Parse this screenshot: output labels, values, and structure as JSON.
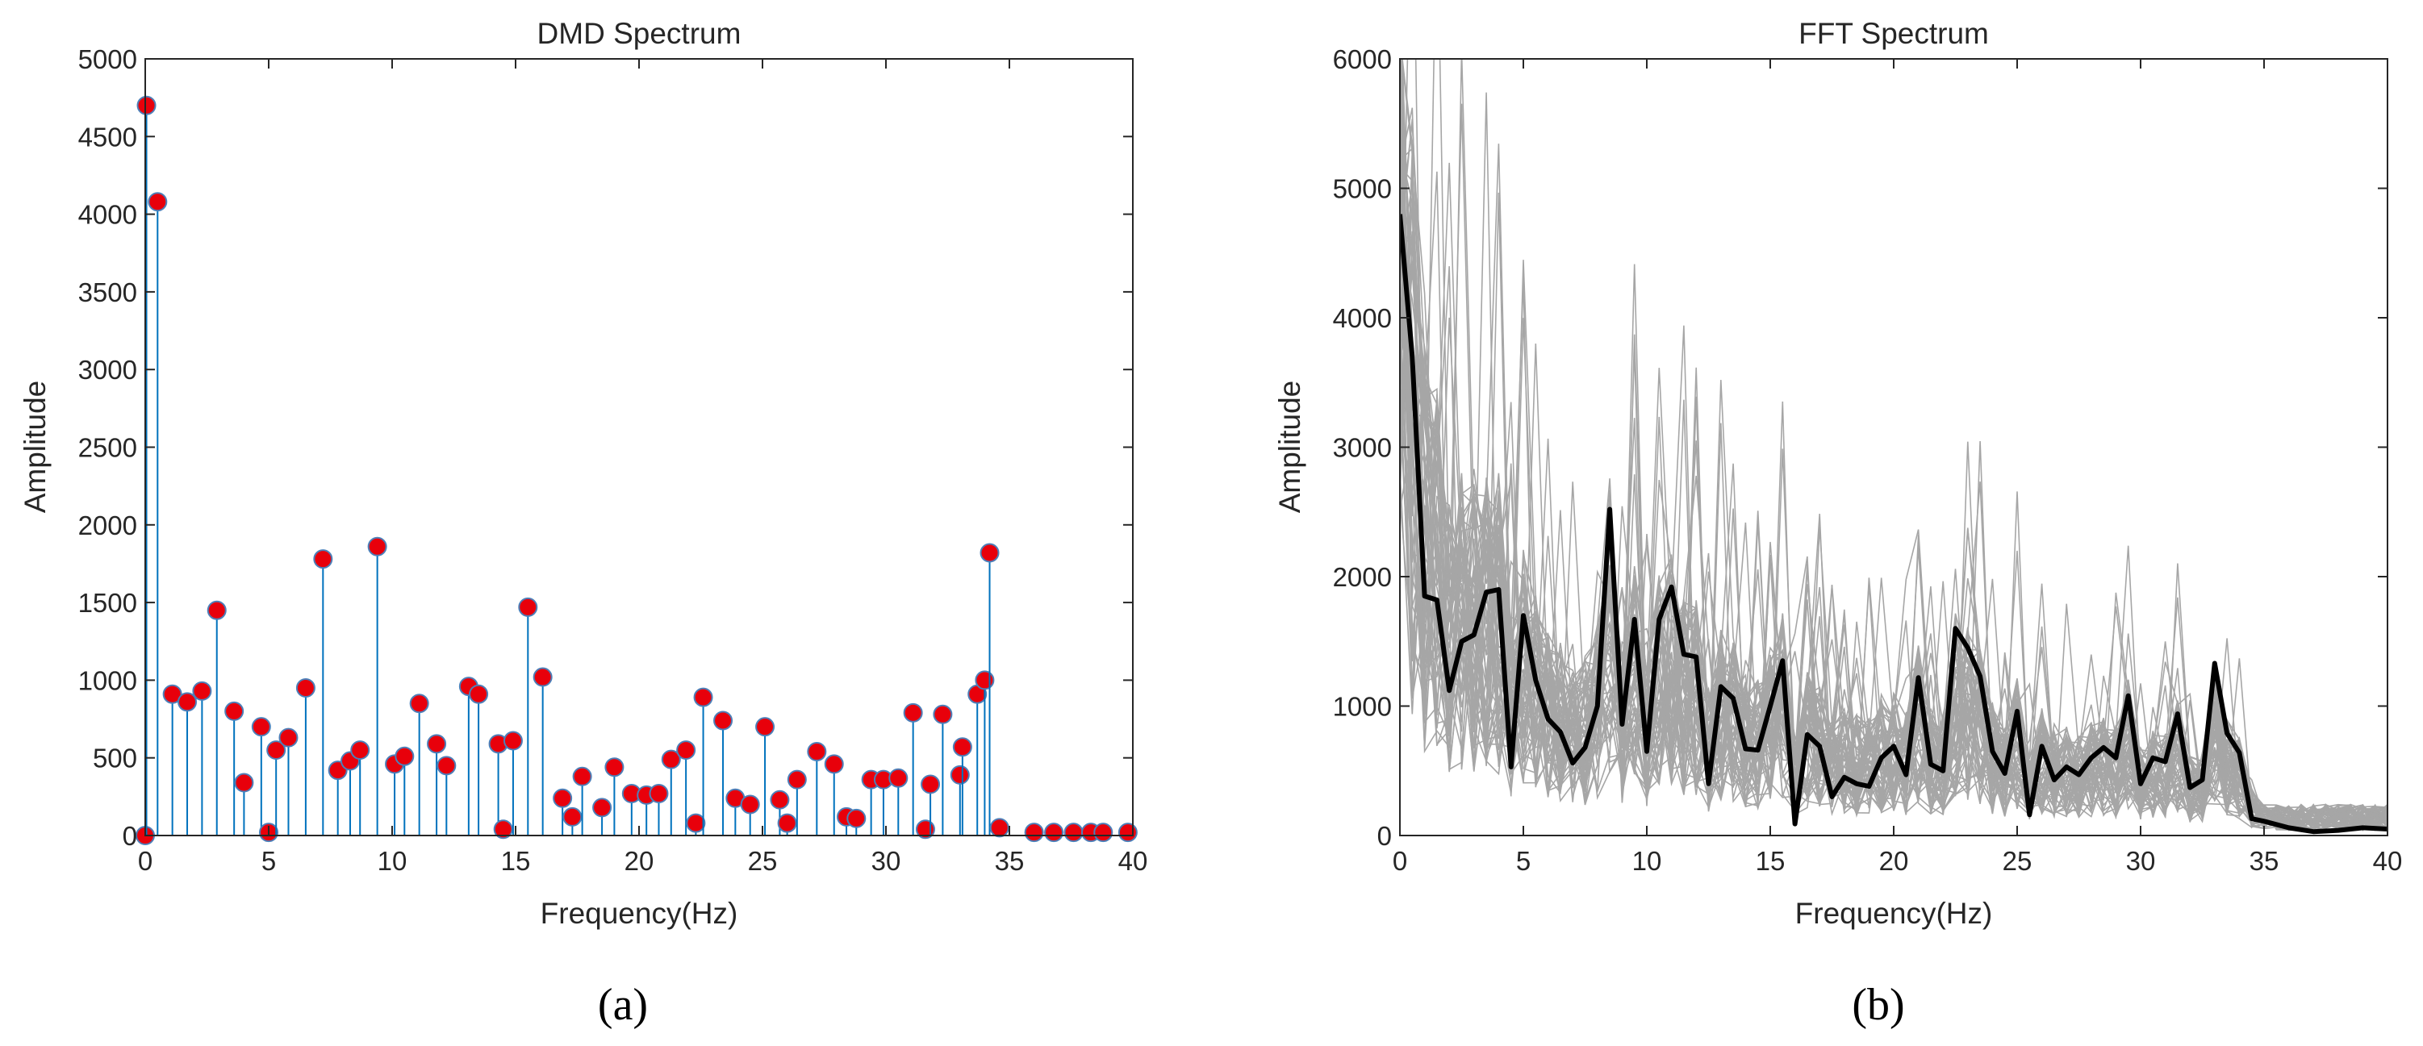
{
  "chart_data": [
    {
      "type": "stem",
      "title": "DMD Spectrum",
      "xlabel": "Frequency(Hz)",
      "ylabel": "Amplitude",
      "xlim": [
        0,
        40
      ],
      "ylim": [
        0,
        5000
      ],
      "xticks": [
        0,
        5,
        10,
        15,
        20,
        25,
        30,
        35,
        40
      ],
      "yticks": [
        0,
        500,
        1000,
        1500,
        2000,
        2500,
        3000,
        3500,
        4000,
        4500,
        5000
      ],
      "grid": false,
      "stem_color": "#0072BD",
      "marker_color": "#E8000B",
      "marker_edge_color": "#4D7FB8",
      "points": [
        [
          0.0,
          0
        ],
        [
          0.05,
          4700
        ],
        [
          0.5,
          4080
        ],
        [
          1.1,
          910
        ],
        [
          1.7,
          860
        ],
        [
          2.3,
          930
        ],
        [
          2.9,
          1450
        ],
        [
          3.6,
          800
        ],
        [
          4.0,
          340
        ],
        [
          4.7,
          700
        ],
        [
          5.0,
          20
        ],
        [
          5.3,
          550
        ],
        [
          5.8,
          630
        ],
        [
          6.5,
          950
        ],
        [
          7.2,
          1780
        ],
        [
          7.8,
          420
        ],
        [
          8.3,
          480
        ],
        [
          8.7,
          550
        ],
        [
          9.4,
          1860
        ],
        [
          10.1,
          460
        ],
        [
          10.5,
          510
        ],
        [
          11.1,
          850
        ],
        [
          11.8,
          590
        ],
        [
          12.2,
          450
        ],
        [
          13.1,
          960
        ],
        [
          13.5,
          910
        ],
        [
          14.3,
          590
        ],
        [
          14.5,
          40
        ],
        [
          14.9,
          610
        ],
        [
          15.5,
          1470
        ],
        [
          16.1,
          1020
        ],
        [
          16.9,
          240
        ],
        [
          17.3,
          120
        ],
        [
          17.7,
          380
        ],
        [
          18.5,
          180
        ],
        [
          19.0,
          440
        ],
        [
          19.7,
          270
        ],
        [
          20.3,
          260
        ],
        [
          20.8,
          270
        ],
        [
          21.3,
          490
        ],
        [
          21.9,
          550
        ],
        [
          22.3,
          80
        ],
        [
          22.6,
          890
        ],
        [
          23.4,
          740
        ],
        [
          23.9,
          240
        ],
        [
          24.5,
          200
        ],
        [
          25.1,
          700
        ],
        [
          25.7,
          230
        ],
        [
          26.0,
          80
        ],
        [
          26.4,
          360
        ],
        [
          27.2,
          540
        ],
        [
          27.9,
          460
        ],
        [
          28.4,
          120
        ],
        [
          28.8,
          110
        ],
        [
          29.4,
          360
        ],
        [
          29.9,
          360
        ],
        [
          30.5,
          370
        ],
        [
          31.1,
          790
        ],
        [
          31.6,
          40
        ],
        [
          31.8,
          330
        ],
        [
          32.3,
          780
        ],
        [
          33.0,
          390
        ],
        [
          33.1,
          570
        ],
        [
          33.7,
          910
        ],
        [
          34.0,
          1000
        ],
        [
          34.2,
          1820
        ],
        [
          34.6,
          50
        ],
        [
          36.0,
          20
        ],
        [
          36.8,
          20
        ],
        [
          37.6,
          20
        ],
        [
          38.3,
          20
        ],
        [
          38.8,
          20
        ],
        [
          39.8,
          20
        ]
      ]
    },
    {
      "type": "line",
      "title": "FFT Spectrum",
      "xlabel": "Frequency(Hz)",
      "ylabel": "Amplitude",
      "xlim": [
        0,
        40
      ],
      "ylim": [
        0,
        6000
      ],
      "xticks": [
        0,
        5,
        10,
        15,
        20,
        25,
        30,
        35,
        40
      ],
      "yticks": [
        0,
        1000,
        2000,
        3000,
        4000,
        5000,
        6000
      ],
      "grid": false,
      "background_series_color": "#A6A6A6",
      "background_series_count": 60,
      "background_series_note_values": "many gray individual FFT spectra; values drawn procedurally around the mean curve",
      "mean_series_color": "#000000",
      "series": [
        {
          "x": [
            0,
            0.5,
            1,
            1.5,
            2,
            2.5,
            3,
            3.5,
            4,
            4.5,
            5,
            5.5,
            6,
            6.5,
            7,
            7.5,
            8,
            8.5,
            9,
            9.5,
            10,
            10.5,
            11,
            11.5,
            12,
            12.5,
            13,
            13.5,
            14,
            14.5,
            15,
            15.5,
            16,
            16.5,
            17,
            17.5,
            18,
            18.5,
            19,
            19.5,
            20,
            20.5,
            21,
            21.5,
            22,
            22.5,
            23,
            23.5,
            24,
            24.5,
            25,
            25.5,
            26,
            26.5,
            27,
            27.5,
            28,
            28.5,
            29,
            29.5,
            30,
            30.5,
            31,
            31.5,
            32,
            32.5,
            33,
            33.5,
            34,
            34.5,
            35,
            36,
            37,
            38,
            39,
            40
          ],
          "values": [
            4800,
            3700,
            1850,
            1820,
            1120,
            1500,
            1550,
            1880,
            1900,
            530,
            1700,
            1200,
            900,
            800,
            560,
            680,
            1000,
            2520,
            860,
            1670,
            650,
            1670,
            1920,
            1400,
            1380,
            400,
            1150,
            1060,
            670,
            660,
            1000,
            1350,
            90,
            780,
            690,
            300,
            450,
            400,
            380,
            600,
            690,
            470,
            1220,
            550,
            500,
            1600,
            1450,
            1230,
            650,
            480,
            960,
            160,
            690,
            430,
            530,
            470,
            600,
            680,
            600,
            1080,
            400,
            600,
            570,
            940,
            370,
            430,
            1330,
            790,
            640,
            130,
            110,
            60,
            30,
            40,
            60,
            50
          ]
        }
      ]
    }
  ],
  "panels": {
    "a_label": "(a)",
    "b_label": "(b)"
  }
}
